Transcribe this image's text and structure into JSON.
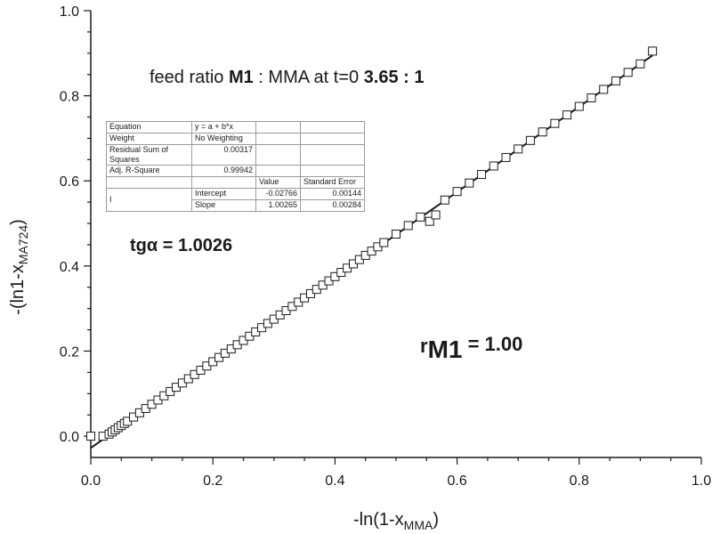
{
  "chart_data": {
    "type": "scatter",
    "xlabel_main": "-ln(1-x",
    "xlabel_sub": "MMA",
    "xlabel_end": ")",
    "ylabel_main": "-(ln1-x",
    "ylabel_sub": "MA724",
    "ylabel_end": ")",
    "xlim": [
      0.0,
      1.0
    ],
    "ylim": [
      -0.05,
      1.0
    ],
    "x_ticks": [
      "0.0",
      "0.2",
      "0.4",
      "0.6",
      "0.8",
      "1.0"
    ],
    "y_ticks": [
      "0.0",
      "0.2",
      "0.4",
      "0.6",
      "0.8",
      "1.0"
    ],
    "x_tick_values": [
      0.0,
      0.2,
      0.4,
      0.6,
      0.8,
      1.0
    ],
    "y_tick_values": [
      0.0,
      0.2,
      0.4,
      0.6,
      0.8,
      1.0
    ],
    "grid": false,
    "marker": "open-square",
    "fit_line": {
      "intercept": -0.02766,
      "slope": 1.00265,
      "x_range": [
        0.0,
        0.92
      ]
    },
    "series": [
      {
        "x": [
          0.0,
          0.02,
          0.03,
          0.035,
          0.04,
          0.045,
          0.05,
          0.055,
          0.06,
          0.07,
          0.08,
          0.09,
          0.1,
          0.11,
          0.12,
          0.13,
          0.14,
          0.15,
          0.16,
          0.17,
          0.18,
          0.19,
          0.2,
          0.21,
          0.22,
          0.23,
          0.24,
          0.25,
          0.26,
          0.27,
          0.28,
          0.29,
          0.3,
          0.31,
          0.32,
          0.33,
          0.34,
          0.35,
          0.36,
          0.37,
          0.38,
          0.39,
          0.4,
          0.41,
          0.42,
          0.43,
          0.44,
          0.45,
          0.46,
          0.47,
          0.48,
          0.5,
          0.52,
          0.54,
          0.555,
          0.565,
          0.58,
          0.6,
          0.62,
          0.64,
          0.66,
          0.68,
          0.7,
          0.72,
          0.74,
          0.76,
          0.78,
          0.8,
          0.82,
          0.84,
          0.86,
          0.88,
          0.9,
          0.92
        ],
        "y": [
          0.0,
          0.0,
          0.005,
          0.01,
          0.015,
          0.02,
          0.025,
          0.03,
          0.035,
          0.045,
          0.055,
          0.065,
          0.075,
          0.085,
          0.095,
          0.105,
          0.115,
          0.125,
          0.135,
          0.145,
          0.155,
          0.165,
          0.175,
          0.185,
          0.195,
          0.205,
          0.215,
          0.225,
          0.235,
          0.245,
          0.255,
          0.265,
          0.275,
          0.285,
          0.295,
          0.305,
          0.315,
          0.325,
          0.335,
          0.345,
          0.355,
          0.365,
          0.375,
          0.385,
          0.395,
          0.405,
          0.415,
          0.425,
          0.435,
          0.445,
          0.455,
          0.475,
          0.495,
          0.515,
          0.505,
          0.52,
          0.555,
          0.575,
          0.595,
          0.615,
          0.635,
          0.655,
          0.675,
          0.695,
          0.715,
          0.735,
          0.755,
          0.775,
          0.795,
          0.815,
          0.835,
          0.855,
          0.875,
          0.905
        ]
      }
    ]
  },
  "annotations": {
    "feed_pre": "feed ratio ",
    "feed_m1": "M1",
    "feed_mid": " : MMA at t=0  ",
    "feed_ratio": "3.65 : 1",
    "tga_label": "tgα  = 1.0026",
    "rm_r": "r",
    "rm_sub": "M1",
    "rm_val": " = 1.00"
  },
  "fit_table": {
    "equation_label": "Equation",
    "equation_value": "y = a + b*x",
    "weight_label": "Weight",
    "weight_value": "No Weighting",
    "rss_label": "Residual Sum of Squares",
    "rss_value": "0.00317",
    "adjr_label": "Adj. R-Square",
    "adjr_value": "0.99942",
    "col_value": "Value",
    "col_error": "Standard Error",
    "row_id": "I",
    "intercept_label": "Intercept",
    "intercept_value": "-0.02766",
    "intercept_error": "0.00144",
    "slope_label": "Slope",
    "slope_value": "1.00265",
    "slope_error": "0.00284"
  }
}
